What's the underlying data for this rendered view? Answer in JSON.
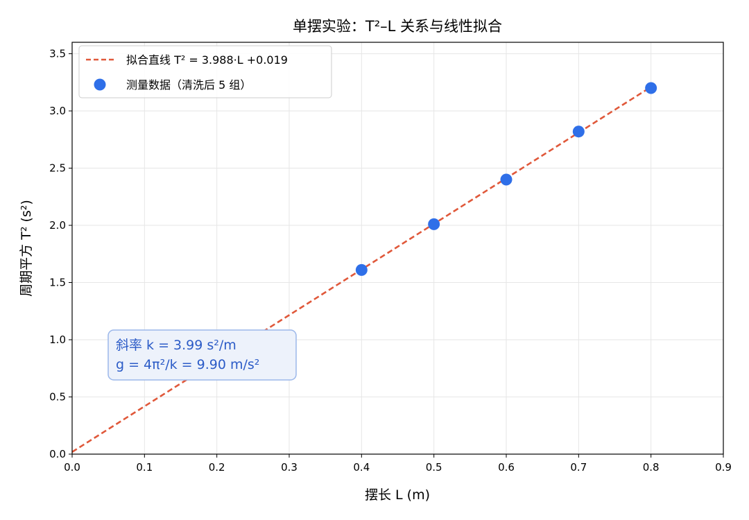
{
  "chart_data": {
    "type": "scatter",
    "title": "单摆实验：T²–L 关系与线性拟合",
    "xlabel": "摆长 L (m)",
    "ylabel": "周期平方 T² (s²)",
    "xlim": [
      0.0,
      0.9
    ],
    "ylim": [
      0.0,
      3.6
    ],
    "xticks": [
      "0.0",
      "0.1",
      "0.2",
      "0.3",
      "0.4",
      "0.5",
      "0.6",
      "0.7",
      "0.8",
      "0.9"
    ],
    "yticks": [
      "0.0",
      "0.5",
      "1.0",
      "1.5",
      "2.0",
      "2.5",
      "3.0",
      "3.5"
    ],
    "grid": true,
    "legend_position": "top-left",
    "series": [
      {
        "name": "测量数据（清洗后 5 组）",
        "kind": "scatter",
        "color": "#2f6fe8",
        "x": [
          0.4,
          0.5,
          0.6,
          0.7,
          0.8
        ],
        "y": [
          1.61,
          2.01,
          2.4,
          2.82,
          3.2
        ]
      },
      {
        "name": "拟合直线  T² = 3.988·L +0.019",
        "kind": "line",
        "style": "dashed",
        "color": "#e0583a",
        "slope": 3.988,
        "intercept": 0.019,
        "x_range": [
          0.0,
          0.8
        ]
      }
    ],
    "annotation": {
      "lines": [
        "斜率 k = 3.99 s²/m",
        "g = 4π²/k = 9.90 m/s²"
      ],
      "text_color": "#2b5bc7",
      "box_fill": "#edf2fb",
      "box_border": "#9bb7ea"
    }
  }
}
